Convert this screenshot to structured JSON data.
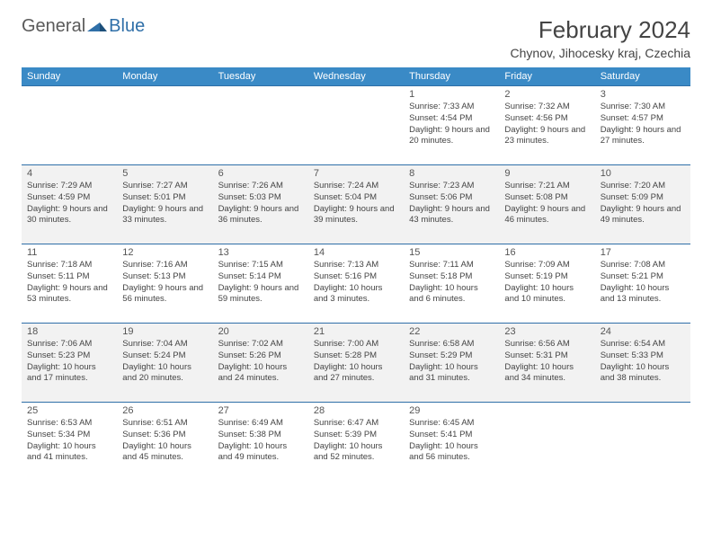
{
  "brand": {
    "part1": "General",
    "part2": "Blue"
  },
  "title": "February 2024",
  "location": "Chynov, Jihocesky kraj, Czechia",
  "columns": [
    "Sunday",
    "Monday",
    "Tuesday",
    "Wednesday",
    "Thursday",
    "Friday",
    "Saturday"
  ],
  "colors": {
    "header_bg": "#3a8ac6",
    "header_text": "#ffffff",
    "border": "#2f6fa8",
    "alt_row_bg": "#f2f2f2",
    "text": "#444444",
    "logo_gray": "#5a5a5a",
    "logo_blue": "#2f6fa8"
  },
  "weeks": [
    {
      "alt": false,
      "days": [
        null,
        null,
        null,
        null,
        {
          "n": "1",
          "sunrise": "7:33 AM",
          "sunset": "4:54 PM",
          "daylight": "9 hours and 20 minutes."
        },
        {
          "n": "2",
          "sunrise": "7:32 AM",
          "sunset": "4:56 PM",
          "daylight": "9 hours and 23 minutes."
        },
        {
          "n": "3",
          "sunrise": "7:30 AM",
          "sunset": "4:57 PM",
          "daylight": "9 hours and 27 minutes."
        }
      ]
    },
    {
      "alt": true,
      "days": [
        {
          "n": "4",
          "sunrise": "7:29 AM",
          "sunset": "4:59 PM",
          "daylight": "9 hours and 30 minutes."
        },
        {
          "n": "5",
          "sunrise": "7:27 AM",
          "sunset": "5:01 PM",
          "daylight": "9 hours and 33 minutes."
        },
        {
          "n": "6",
          "sunrise": "7:26 AM",
          "sunset": "5:03 PM",
          "daylight": "9 hours and 36 minutes."
        },
        {
          "n": "7",
          "sunrise": "7:24 AM",
          "sunset": "5:04 PM",
          "daylight": "9 hours and 39 minutes."
        },
        {
          "n": "8",
          "sunrise": "7:23 AM",
          "sunset": "5:06 PM",
          "daylight": "9 hours and 43 minutes."
        },
        {
          "n": "9",
          "sunrise": "7:21 AM",
          "sunset": "5:08 PM",
          "daylight": "9 hours and 46 minutes."
        },
        {
          "n": "10",
          "sunrise": "7:20 AM",
          "sunset": "5:09 PM",
          "daylight": "9 hours and 49 minutes."
        }
      ]
    },
    {
      "alt": false,
      "days": [
        {
          "n": "11",
          "sunrise": "7:18 AM",
          "sunset": "5:11 PM",
          "daylight": "9 hours and 53 minutes."
        },
        {
          "n": "12",
          "sunrise": "7:16 AM",
          "sunset": "5:13 PM",
          "daylight": "9 hours and 56 minutes."
        },
        {
          "n": "13",
          "sunrise": "7:15 AM",
          "sunset": "5:14 PM",
          "daylight": "9 hours and 59 minutes."
        },
        {
          "n": "14",
          "sunrise": "7:13 AM",
          "sunset": "5:16 PM",
          "daylight": "10 hours and 3 minutes."
        },
        {
          "n": "15",
          "sunrise": "7:11 AM",
          "sunset": "5:18 PM",
          "daylight": "10 hours and 6 minutes."
        },
        {
          "n": "16",
          "sunrise": "7:09 AM",
          "sunset": "5:19 PM",
          "daylight": "10 hours and 10 minutes."
        },
        {
          "n": "17",
          "sunrise": "7:08 AM",
          "sunset": "5:21 PM",
          "daylight": "10 hours and 13 minutes."
        }
      ]
    },
    {
      "alt": true,
      "days": [
        {
          "n": "18",
          "sunrise": "7:06 AM",
          "sunset": "5:23 PM",
          "daylight": "10 hours and 17 minutes."
        },
        {
          "n": "19",
          "sunrise": "7:04 AM",
          "sunset": "5:24 PM",
          "daylight": "10 hours and 20 minutes."
        },
        {
          "n": "20",
          "sunrise": "7:02 AM",
          "sunset": "5:26 PM",
          "daylight": "10 hours and 24 minutes."
        },
        {
          "n": "21",
          "sunrise": "7:00 AM",
          "sunset": "5:28 PM",
          "daylight": "10 hours and 27 minutes."
        },
        {
          "n": "22",
          "sunrise": "6:58 AM",
          "sunset": "5:29 PM",
          "daylight": "10 hours and 31 minutes."
        },
        {
          "n": "23",
          "sunrise": "6:56 AM",
          "sunset": "5:31 PM",
          "daylight": "10 hours and 34 minutes."
        },
        {
          "n": "24",
          "sunrise": "6:54 AM",
          "sunset": "5:33 PM",
          "daylight": "10 hours and 38 minutes."
        }
      ]
    },
    {
      "alt": false,
      "days": [
        {
          "n": "25",
          "sunrise": "6:53 AM",
          "sunset": "5:34 PM",
          "daylight": "10 hours and 41 minutes."
        },
        {
          "n": "26",
          "sunrise": "6:51 AM",
          "sunset": "5:36 PM",
          "daylight": "10 hours and 45 minutes."
        },
        {
          "n": "27",
          "sunrise": "6:49 AM",
          "sunset": "5:38 PM",
          "daylight": "10 hours and 49 minutes."
        },
        {
          "n": "28",
          "sunrise": "6:47 AM",
          "sunset": "5:39 PM",
          "daylight": "10 hours and 52 minutes."
        },
        {
          "n": "29",
          "sunrise": "6:45 AM",
          "sunset": "5:41 PM",
          "daylight": "10 hours and 56 minutes."
        },
        null,
        null
      ]
    }
  ],
  "labels": {
    "sunrise": "Sunrise:",
    "sunset": "Sunset:",
    "daylight": "Daylight:"
  }
}
